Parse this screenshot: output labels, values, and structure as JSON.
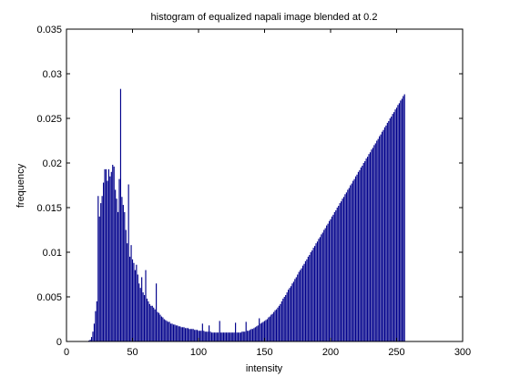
{
  "chart_data": {
    "type": "bar",
    "title": "histogram of equalized napali image blended at 0.2",
    "xlabel": "intensity",
    "ylabel": "frequency",
    "xlim": [
      0,
      300
    ],
    "ylim": [
      0,
      0.035
    ],
    "xticks": [
      0,
      50,
      100,
      150,
      200,
      250,
      300
    ],
    "xtick_labels": [
      "0",
      "50",
      "100",
      "150",
      "200",
      "250",
      "300"
    ],
    "yticks": [
      0,
      0.005,
      0.01,
      0.015,
      0.02,
      0.025,
      0.03,
      0.035
    ],
    "ytick_labels": [
      "0",
      "0.005",
      "0.01",
      "0.015",
      "0.02",
      "0.025",
      "0.03",
      "0.035"
    ],
    "grid": false,
    "bar_color": "#00008b",
    "x_start": 17,
    "values": [
      0.0001,
      0.0002,
      0.0005,
      0.0011,
      0.002,
      0.0034,
      0.0045,
      0.0163,
      0.014,
      0.0155,
      0.0163,
      0.0178,
      0.0193,
      0.0193,
      0.018,
      0.0193,
      0.0185,
      0.019,
      0.0198,
      0.0196,
      0.017,
      0.016,
      0.0145,
      0.0182,
      0.0283,
      0.0162,
      0.0153,
      0.0145,
      0.0125,
      0.011,
      0.0176,
      0.0095,
      0.0108,
      0.0092,
      0.0088,
      0.008,
      0.0086,
      0.0075,
      0.0065,
      0.006,
      0.0072,
      0.0055,
      0.0052,
      0.008,
      0.0048,
      0.0045,
      0.0042,
      0.004,
      0.004,
      0.0038,
      0.0036,
      0.0065,
      0.0033,
      0.0032,
      0.003,
      0.0028,
      0.0027,
      0.0025,
      0.0024,
      0.0023,
      0.0022,
      0.0022,
      0.002,
      0.002,
      0.0019,
      0.0019,
      0.0018,
      0.0018,
      0.0017,
      0.0017,
      0.0016,
      0.0016,
      0.0016,
      0.0015,
      0.0015,
      0.0015,
      0.0014,
      0.0014,
      0.0014,
      0.0014,
      0.0013,
      0.0013,
      0.0013,
      0.0012,
      0.0012,
      0.0012,
      0.002,
      0.0012,
      0.0011,
      0.0011,
      0.0011,
      0.0018,
      0.0011,
      0.001,
      0.001,
      0.001,
      0.001,
      0.001,
      0.001,
      0.0023,
      0.001,
      0.001,
      0.001,
      0.001,
      0.001,
      0.001,
      0.001,
      0.001,
      0.001,
      0.001,
      0.001,
      0.0021,
      0.001,
      0.001,
      0.001,
      0.001,
      0.0011,
      0.0011,
      0.0011,
      0.0022,
      0.0012,
      0.0012,
      0.0013,
      0.0014,
      0.0014,
      0.0015,
      0.0016,
      0.0017,
      0.0018,
      0.0026,
      0.002,
      0.0021,
      0.0022,
      0.0023,
      0.0024,
      0.0025,
      0.0027,
      0.0028,
      0.003,
      0.0031,
      0.0033,
      0.0035,
      0.0036,
      0.0038,
      0.004,
      0.0042,
      0.0045,
      0.0048,
      0.005,
      0.0052,
      0.0055,
      0.0058,
      0.006,
      0.0062,
      0.0065,
      0.0067,
      0.007,
      0.0072,
      0.0075,
      0.0078,
      0.008,
      0.0082,
      0.0085,
      0.0087,
      0.009,
      0.0092,
      0.0095,
      0.0097,
      0.01,
      0.0102,
      0.0105,
      0.0107,
      0.011,
      0.0112,
      0.0115,
      0.0117,
      0.012,
      0.0122,
      0.0125,
      0.0127,
      0.013,
      0.0132,
      0.0135,
      0.0137,
      0.014,
      0.0142,
      0.0145,
      0.0147,
      0.015,
      0.0152,
      0.0155,
      0.0157,
      0.016,
      0.0162,
      0.0165,
      0.0167,
      0.017,
      0.0172,
      0.0175,
      0.0177,
      0.018,
      0.0182,
      0.0185,
      0.0187,
      0.019,
      0.0192,
      0.0195,
      0.0197,
      0.02,
      0.0202,
      0.0205,
      0.0207,
      0.021,
      0.0212,
      0.0215,
      0.0217,
      0.022,
      0.0222,
      0.0225,
      0.0227,
      0.023,
      0.0232,
      0.0235,
      0.0237,
      0.024,
      0.0242,
      0.0245,
      0.0247,
      0.025,
      0.0252,
      0.0255,
      0.0257,
      0.026,
      0.0262,
      0.0265,
      0.0267,
      0.027,
      0.0272,
      0.0275,
      0.0277
    ]
  }
}
